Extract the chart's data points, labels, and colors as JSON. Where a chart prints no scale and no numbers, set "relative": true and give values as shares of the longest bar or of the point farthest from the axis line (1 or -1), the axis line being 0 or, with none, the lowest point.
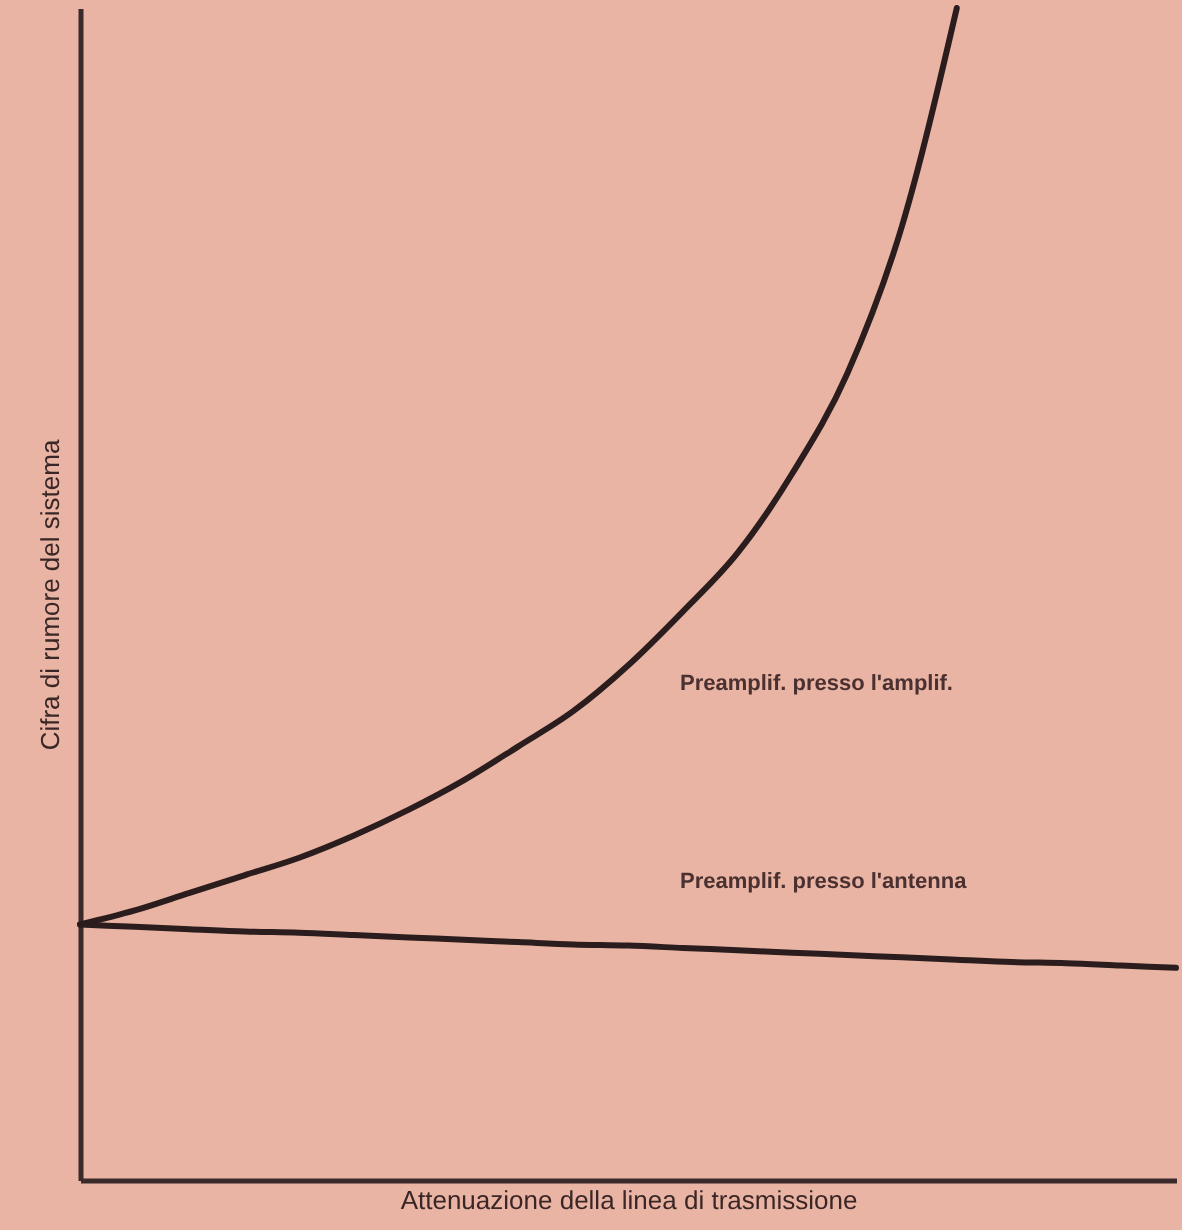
{
  "chart_data": {
    "type": "line",
    "relative": true,
    "xlabel": "Attenuazione della linea di trasmissione",
    "ylabel": "Cifra di rumore del sistema",
    "categories": [
      null,
      null,
      null,
      null,
      null,
      null,
      null,
      null,
      null,
      null,
      null,
      null,
      null,
      null,
      null,
      null,
      null,
      null,
      null,
      null,
      null
    ],
    "series": [
      {
        "color": "#2b1d1d",
        "values": [
          0.218,
          0.23,
          0.245,
          0.26,
          0.275,
          0.294,
          0.316,
          0.341,
          0.37,
          0.4,
          0.439,
          0.485,
          0.535,
          0.603,
          0.688,
          0.814,
          1,
          null,
          null,
          null,
          null
        ]
      },
      {
        "color": "#2b1d1d",
        "values": [
          0.218,
          0.216,
          0.214,
          0.212,
          0.211,
          0.209,
          0.207,
          0.205,
          0.203,
          0.201,
          0.2,
          0.198,
          0.196,
          0.194,
          0.192,
          0.19,
          0.188,
          0.186,
          0.185,
          0.183,
          0.181
        ]
      }
    ],
    "annotations": [
      "Preamplif. presso l'amplif.",
      "Preamplif. presso l'antenna"
    ],
    "marker": "none",
    "line_style": "solid"
  }
}
